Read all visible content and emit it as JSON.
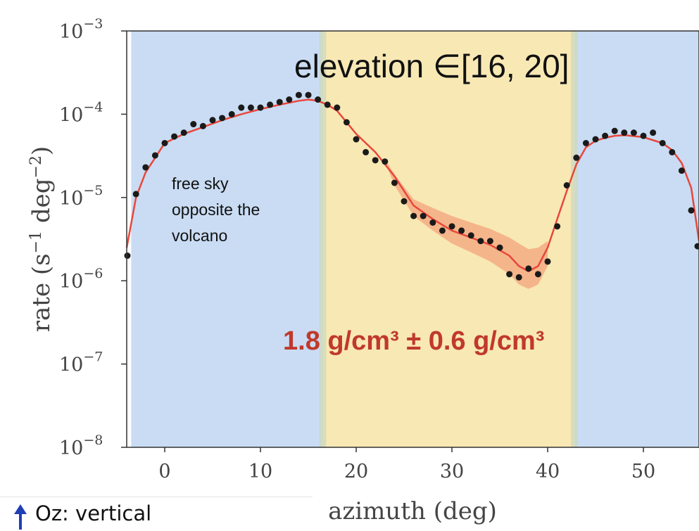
{
  "chart_data": {
    "type": "scatter",
    "title": "elevation ∈[16, 20]",
    "xlabel": "azimuth (deg)",
    "ylabel_prefix": "rate (s",
    "ylabel_exp1": "−1",
    "ylabel_mid": " deg",
    "ylabel_exp2": "−2",
    "ylabel_suffix": ")",
    "x_ticks": [
      0,
      10,
      20,
      30,
      40,
      50
    ],
    "xlim": [
      -4,
      56
    ],
    "y_scale": "log",
    "y_tick_exponents": [
      -3,
      -4,
      -5,
      -6,
      -7,
      -8
    ],
    "ylim": [
      1e-08,
      0.001
    ],
    "grid": false,
    "regions": [
      {
        "name": "free sky",
        "x": [
          -3.5,
          16.5
        ],
        "color": "#c9dcf3"
      },
      {
        "name": "volcano",
        "x": [
          16.5,
          42.8
        ],
        "color": "#f8e8b4"
      },
      {
        "name": "free sky",
        "x": [
          42.8,
          56
        ],
        "color": "#c9dcf3"
      }
    ],
    "annotations": {
      "free_sky": [
        "free sky",
        "opposite the",
        "volcano"
      ],
      "density": "1.8 g/cm³ ± 0.6 g/cm³"
    },
    "series": [
      {
        "kind": "points",
        "color": "#1a1a1a",
        "x": [
          -4,
          -3,
          -2,
          -1,
          0,
          1,
          2,
          3,
          4,
          5,
          6,
          7,
          8,
          9,
          10,
          11,
          12,
          13,
          14,
          15,
          16,
          17,
          18,
          19,
          20,
          21,
          22,
          23,
          24,
          25,
          26,
          27,
          28,
          29,
          30,
          31,
          32,
          33,
          34,
          35,
          36,
          37,
          38,
          39,
          40,
          41,
          42,
          43,
          44,
          45,
          46,
          47,
          48,
          49,
          50,
          51,
          52,
          53,
          54,
          55,
          56
        ],
        "y": [
          2e-06,
          1.1e-05,
          2.3e-05,
          3.2e-05,
          4.5e-05,
          5.4e-05,
          6e-05,
          7.6e-05,
          7.2e-05,
          8.5e-05,
          9e-05,
          0.0001,
          0.00012,
          0.00012,
          0.00012,
          0.00013,
          0.00014,
          0.00015,
          0.00017,
          0.00017,
          0.00015,
          0.00013,
          0.00012,
          8e-05,
          5e-05,
          3.5e-05,
          2.8e-05,
          2.7e-05,
          1.5e-05,
          9e-06,
          6e-06,
          6e-06,
          5e-06,
          4e-06,
          4.5e-06,
          4e-06,
          3.5e-06,
          3e-06,
          3e-06,
          2.5e-06,
          1.2e-06,
          1.1e-06,
          1.4e-06,
          1.2e-06,
          1.7e-06,
          4.5e-06,
          1.4e-05,
          3e-05,
          4.5e-05,
          5e-05,
          5.5e-05,
          6.3e-05,
          6e-05,
          6e-05,
          5.5e-05,
          6e-05,
          4.5e-05,
          3.5e-05,
          2.1e-05,
          7e-06,
          2.6e-06
        ]
      },
      {
        "kind": "fit",
        "color": "#e8473b",
        "x": [
          -4,
          -3,
          -2,
          -1,
          0,
          2,
          4,
          6,
          8,
          10,
          12,
          14,
          15,
          16,
          17,
          18,
          19,
          20,
          22,
          24,
          26,
          28,
          30,
          32,
          34,
          36,
          37,
          38,
          39,
          40,
          41,
          42,
          43,
          44,
          45,
          46,
          47,
          48,
          50,
          52,
          53,
          54,
          55,
          56
        ],
        "y": [
          2.5e-06,
          1e-05,
          2e-05,
          3e-05,
          4.5e-05,
          5.8e-05,
          7e-05,
          8.5e-05,
          0.0001,
          0.000115,
          0.00013,
          0.000145,
          0.00015,
          0.000145,
          0.00013,
          0.00011,
          8e-05,
          5.8e-05,
          3.5e-05,
          1.8e-05,
          8e-06,
          5.5e-06,
          4e-06,
          3.3e-06,
          2.7e-06,
          2e-06,
          1.5e-06,
          1.3e-06,
          1.5e-06,
          2.5e-06,
          5.5e-06,
          1.2e-05,
          2.5e-05,
          4e-05,
          4.8e-05,
          5.2e-05,
          5.5e-05,
          5.6e-05,
          5.3e-05,
          4.5e-05,
          3.7e-05,
          2.6e-05,
          1.3e-05,
          3e-06
        ]
      },
      {
        "kind": "band",
        "color": "#f4a47c",
        "x": [
          23,
          24,
          26,
          28,
          30,
          32,
          34,
          36,
          37,
          38,
          39,
          40
        ],
        "y_low": [
          2.7e-05,
          1.4e-05,
          6e-06,
          4e-06,
          2.8e-06,
          2.2e-06,
          1.7e-06,
          1.2e-06,
          9e-07,
          8e-07,
          9e-07,
          1.5e-06
        ],
        "y_high": [
          2.9e-05,
          1.9e-05,
          9.5e-06,
          7.5e-06,
          6e-06,
          5e-06,
          4.2e-06,
          3.3e-06,
          2.8e-06,
          2.4e-06,
          2.5e-06,
          3e-06
        ]
      }
    ]
  },
  "caption": {
    "oz_label": "Oz: vertical"
  }
}
